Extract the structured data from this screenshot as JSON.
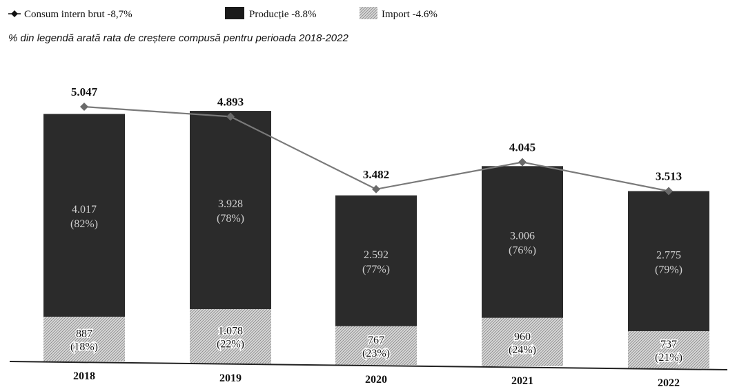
{
  "legend": {
    "items": [
      {
        "label": "Consum intern brut -8,7%",
        "marker": "line-diamond"
      },
      {
        "label": "Producție -8.8%",
        "marker": "solid-square"
      },
      {
        "label": "Import -4.6%",
        "marker": "hatched-square"
      }
    ],
    "note": "% din legendă arată rata de creștere compusă pentru perioada 2018-2022"
  },
  "colors": {
    "production": "#2b2b2b",
    "import": "#d4d4d4",
    "line": "#7a7a7a",
    "marker": "#6a6a6a",
    "axis": "#222222",
    "text_dark": "#111111",
    "text_light": "#cfcfcf"
  },
  "chart_data": {
    "type": "bar",
    "stacked": true,
    "categories": [
      "2018",
      "2019",
      "2020",
      "2021",
      "2022"
    ],
    "series": [
      {
        "name": "Import",
        "values": [
          887,
          1078,
          767,
          960,
          737
        ],
        "labels": [
          "887",
          "1.078",
          "767",
          "960",
          "737"
        ],
        "shares": [
          "(18%)",
          "(22%)",
          "(23%)",
          "(24%)",
          "(21%)"
        ]
      },
      {
        "name": "Producție",
        "values": [
          4017,
          3928,
          2592,
          3006,
          2775
        ],
        "labels": [
          "4.017",
          "3.928",
          "2.592",
          "3.006",
          "2.775"
        ],
        "shares": [
          "(82%)",
          "(78%)",
          "(77%)",
          "(76%)",
          "(79%)"
        ]
      }
    ],
    "line": {
      "name": "Consum intern brut",
      "values": [
        5047,
        4893,
        3482,
        4045,
        3513
      ],
      "labels": [
        "5.047",
        "4.893",
        "3.482",
        "4.045",
        "3.513"
      ]
    },
    "ylim": [
      0,
      5600
    ],
    "grid": false,
    "legend_position": "top-left"
  }
}
